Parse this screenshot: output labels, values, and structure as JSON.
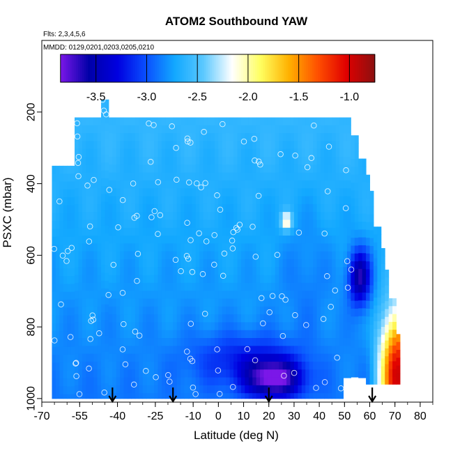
{
  "chart_data": {
    "type": "heatmap",
    "title": "ATOM2 Southbound YAW",
    "flights_note": "Flts: 2,3,4,5,6",
    "dates_note": "MMDD: 0129,0201,0203,0205,0210",
    "xlabel": "Latitude (deg N)",
    "ylabel": "PSXC (mbar)",
    "xlim": [
      -70,
      85
    ],
    "ylim": [
      1010,
      0
    ],
    "x_ticks": [
      -70,
      -55,
      -40,
      -25,
      -10,
      0,
      10,
      20,
      30,
      40,
      50,
      60,
      70,
      80
    ],
    "y_ticks": [
      200,
      400,
      600,
      800,
      1000
    ],
    "colorbar": {
      "range": [
        -3.85,
        -0.75
      ],
      "ticks": [
        -3.5,
        -3.0,
        -2.5,
        -2.0,
        -1.5,
        -1.0
      ],
      "tick_labels": [
        "-3.5",
        "-3.0",
        "-2.5",
        "-2.0",
        "-1.5",
        "-1.0"
      ],
      "colors": [
        "#7b17e8",
        "#0000a8",
        "#0000e0",
        "#0a50ff",
        "#12a8ff",
        "#5ac8ff",
        "#ffffff",
        "#ffff60",
        "#ffb000",
        "#ff5000",
        "#e00000",
        "#8c1010"
      ]
    },
    "field_description_values": {
      "base_value": -2.8,
      "features": [
        {
          "name": "low-level minimum",
          "lat": 22,
          "p": 960,
          "value": -3.7
        },
        {
          "name": "mid-level minimum",
          "lat": 57,
          "p": 650,
          "value": -3.6
        },
        {
          "name": "high-latitude maximum",
          "lat": 70,
          "p": 930,
          "value": -1.0
        },
        {
          "name": "pale patch",
          "lat": 27,
          "p": 505,
          "value": -2.1
        }
      ]
    },
    "profile_markers_lat": [
      -42,
      -18,
      20,
      61
    ]
  }
}
